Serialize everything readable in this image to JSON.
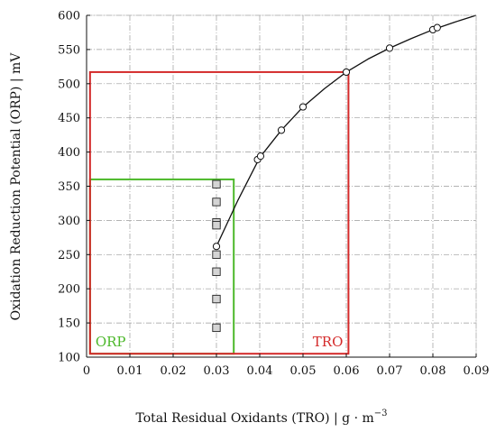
{
  "chart_data": {
    "type": "scatter",
    "xlabel": "Total Residual Oxidants (TRO)  |  g · m",
    "xlabel_sup": "−3",
    "ylabel": "Oxidation Reduction Potential (ORP)  |  mV",
    "xlim": [
      0,
      0.09
    ],
    "ylim": [
      100,
      600
    ],
    "xticks": [
      "0",
      "0.01",
      "0.02",
      "0.03",
      "0.04",
      "0.05",
      "0.06",
      "0.07",
      "0.08",
      "0.09"
    ],
    "yticks": [
      "100",
      "150",
      "200",
      "250",
      "300",
      "350",
      "400",
      "450",
      "500",
      "550",
      "600"
    ],
    "grid": true,
    "series": [
      {
        "marker": "circle",
        "points": [
          {
            "x": 0.03,
            "y": 262
          },
          {
            "x": 0.0395,
            "y": 389
          },
          {
            "x": 0.0402,
            "y": 394
          },
          {
            "x": 0.045,
            "y": 432
          },
          {
            "x": 0.05,
            "y": 466
          },
          {
            "x": 0.06,
            "y": 517
          },
          {
            "x": 0.07,
            "y": 552
          },
          {
            "x": 0.08,
            "y": 579
          },
          {
            "x": 0.081,
            "y": 582
          }
        ]
      },
      {
        "marker": "square",
        "points": [
          {
            "x": 0.03,
            "y": 353
          },
          {
            "x": 0.03,
            "y": 327
          },
          {
            "x": 0.03,
            "y": 297
          },
          {
            "x": 0.03,
            "y": 293
          },
          {
            "x": 0.03,
            "y": 250
          },
          {
            "x": 0.03,
            "y": 225
          },
          {
            "x": 0.03,
            "y": 185
          },
          {
            "x": 0.03,
            "y": 143
          }
        ]
      }
    ],
    "fit_curve": {
      "x": [
        0.03,
        0.035,
        0.04,
        0.045,
        0.05,
        0.055,
        0.06,
        0.065,
        0.07,
        0.075,
        0.08,
        0.085,
        0.09
      ],
      "y": [
        262,
        330,
        392,
        432,
        466,
        493,
        517,
        536,
        552,
        566,
        579,
        590,
        600
      ]
    },
    "boxes": [
      {
        "label": "ORP",
        "color": "#4cb82a",
        "x0": 0.0008,
        "x1": 0.034,
        "y0": 105,
        "y1": 360
      },
      {
        "label": "TRO",
        "color": "#d42a2a",
        "x0": 0.0008,
        "x1": 0.0605,
        "y0": 105,
        "y1": 517
      }
    ]
  }
}
